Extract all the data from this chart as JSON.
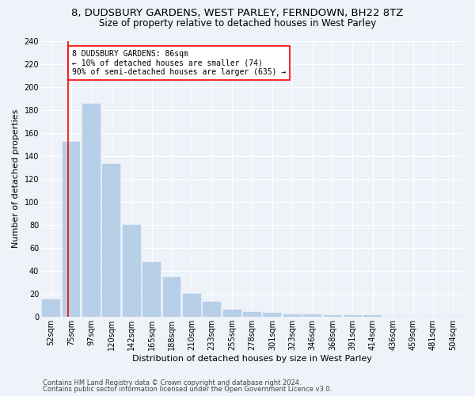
{
  "title1": "8, DUDSBURY GARDENS, WEST PARLEY, FERNDOWN, BH22 8TZ",
  "title2": "Size of property relative to detached houses in West Parley",
  "xlabel": "Distribution of detached houses by size in West Parley",
  "ylabel": "Number of detached properties",
  "bins": [
    "52sqm",
    "75sqm",
    "97sqm",
    "120sqm",
    "142sqm",
    "165sqm",
    "188sqm",
    "210sqm",
    "233sqm",
    "255sqm",
    "278sqm",
    "301sqm",
    "323sqm",
    "346sqm",
    "368sqm",
    "391sqm",
    "414sqm",
    "436sqm",
    "459sqm",
    "481sqm",
    "504sqm"
  ],
  "values": [
    15,
    152,
    185,
    133,
    80,
    47,
    34,
    20,
    13,
    6,
    4,
    3,
    2,
    2,
    1,
    1,
    1,
    0,
    0,
    0,
    0
  ],
  "bar_color": "#b8cfe8",
  "bar_edge_color": "#b8cfe8",
  "annotation_text": "8 DUDSBURY GARDENS: 86sqm\n← 10% of detached houses are smaller (74)\n90% of semi-detached houses are larger (635) →",
  "annotation_box_color": "white",
  "annotation_box_edge": "red",
  "property_line_color": "red",
  "ylim": [
    0,
    240
  ],
  "yticks": [
    0,
    20,
    40,
    60,
    80,
    100,
    120,
    140,
    160,
    180,
    200,
    220,
    240
  ],
  "footnote1": "Contains HM Land Registry data © Crown copyright and database right 2024.",
  "footnote2": "Contains public sector information licensed under the Open Government Licence v3.0.",
  "background_color": "#eef2f9",
  "grid_color": "white",
  "title_fontsize": 9.5,
  "subtitle_fontsize": 8.5,
  "tick_fontsize": 7,
  "label_fontsize": 8,
  "footnote_fontsize": 6,
  "annotation_fontsize": 7
}
